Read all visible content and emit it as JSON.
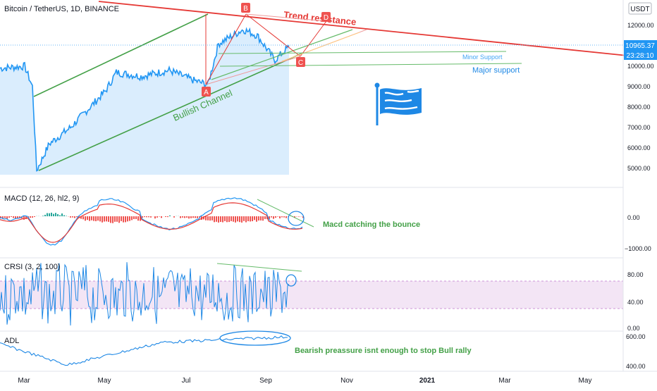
{
  "main": {
    "symbol_title": "Bitcoin / TetherUS, 1D, BINANCE",
    "currency": "USDT",
    "last_price": "10965.37",
    "countdown": "23:28:10",
    "price_ticks": [
      "12000.00",
      "11000.00",
      "10000.00",
      "9000.00",
      "8000.00",
      "7000.00",
      "6000.00",
      "5000.00"
    ],
    "price_tick_values": [
      12000,
      11000,
      10000,
      9000,
      8000,
      7000,
      6000,
      5000
    ],
    "annotations": {
      "trend_resistance": "Trend resistance",
      "minor_support": "Minor Support",
      "major_support": "Major support",
      "bullish_channel": "Bullish Channel",
      "point_a": "A",
      "point_b": "B",
      "point_c": "C",
      "point_d": "D"
    }
  },
  "macd": {
    "title": "MACD (12, 26, hl2, 9)",
    "ticks": [
      "0.00",
      "−1000.00"
    ],
    "annotation": "Macd catching the bounce"
  },
  "crsi": {
    "title": "CRSI (3, 2, 100)",
    "ticks": [
      "80.00",
      "40.00",
      "0.00"
    ]
  },
  "adl": {
    "title": "ADL",
    "ticks": [
      "600.00",
      "400.00"
    ],
    "annotation": "Bearish preassure isnt enough to stop Bull rally"
  },
  "time_axis": {
    "labels": [
      "Mar",
      "May",
      "Jul",
      "Sep",
      "Nov",
      "2021",
      "Mar",
      "May"
    ]
  },
  "colors": {
    "price_line": "#2196f3",
    "area_fill": "#bbdefb",
    "channel": "#43a047",
    "resistance": "#e53935",
    "support": "#66bb6a",
    "label_box": "#ef5350",
    "macd_line": "#2196f3",
    "signal_line": "#e53935",
    "crsi_band": "#f3e5f5",
    "flag": "#1e88e5"
  },
  "chart_data": {
    "type": "line",
    "title": "Bitcoin / TetherUS, 1D, BINANCE",
    "x_labels": [
      "Mar",
      "May",
      "Jul",
      "Sep",
      "Nov",
      "2021",
      "Mar",
      "May"
    ],
    "x": [
      "Feb",
      "Mar",
      "Mar",
      "Mar",
      "Apr",
      "Apr",
      "May",
      "May",
      "Jun",
      "Jun",
      "Jul",
      "Jul",
      "Jul",
      "Aug",
      "Aug",
      "Sep",
      "Sep"
    ],
    "ylim": [
      4500,
      13000
    ],
    "series": [
      {
        "values": [
          9900,
          10000,
          9000,
          4900,
          6200,
          7000,
          8800,
          9700,
          9500,
          9800,
          9300,
          9100,
          11100,
          11800,
          11500,
          10300,
          10960
        ]
      }
    ],
    "grid": false
  }
}
